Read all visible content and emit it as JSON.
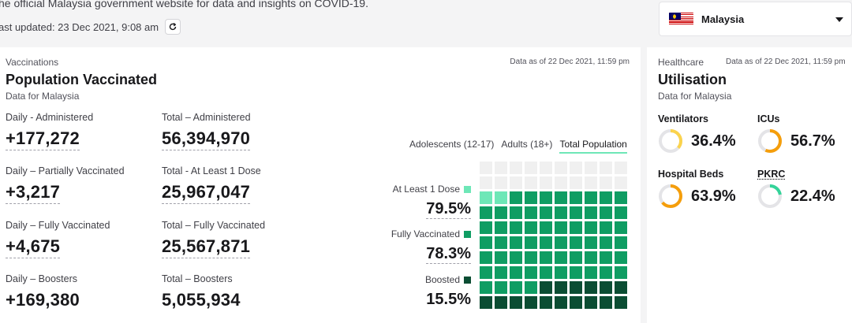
{
  "header": {
    "intro": "he official Malaysia government website for data and insights on COVID-19.",
    "last_updated": "ast updated: 23 Dec 2021, 9:08 am",
    "refresh_icon": "refresh-icon"
  },
  "country_select": {
    "value": "Malaysia",
    "flag_icon": "malaysia-flag-icon",
    "caret_icon": "chevron-down-icon"
  },
  "vaccinations": {
    "overline": "Vaccinations",
    "as_of": "Data as of 22 Dec 2021, 11:59 pm",
    "title": "Population Vaccinated",
    "subtitle": "Data for Malaysia",
    "stats": [
      {
        "label": "Daily - Administered",
        "value": "+177,272"
      },
      {
        "label": "Total – Administered",
        "value": "56,394,970"
      },
      {
        "label": "Daily – Partially Vaccinated",
        "value": "+3,217"
      },
      {
        "label": "Total - At Least 1 Dose",
        "value": "25,967,047"
      },
      {
        "label": "Daily – Fully Vaccinated",
        "value": "+4,675"
      },
      {
        "label": "Total – Fully Vaccinated",
        "value": "25,567,871"
      },
      {
        "label": "Daily – Boosters",
        "value": "+169,380"
      },
      {
        "label": "Total – Boosters",
        "value": "5,055,934"
      }
    ],
    "tabs": [
      "Adolescents (12-17)",
      "Adults (18+)",
      "Total Population"
    ],
    "active_tab": "Total Population",
    "breakdown": [
      {
        "label": "At Least 1 Dose",
        "value": "79.5%",
        "fraction": 0.795,
        "color": "#6ee7b7"
      },
      {
        "label": "Fully Vaccinated",
        "value": "78.3%",
        "fraction": 0.783,
        "color": "#0f9d63"
      },
      {
        "label": "Boosted",
        "value": "15.5%",
        "fraction": 0.155,
        "color": "#0b4d33"
      }
    ],
    "waffle_empty_color": "#f0f0f0"
  },
  "healthcare": {
    "overline": "Healthcare",
    "as_of": "Data as of 22 Dec 2021, 11:59 pm",
    "title": "Utilisation",
    "subtitle": "Data for Malaysia",
    "items": [
      {
        "label": "Ventilators",
        "value": "36.4%",
        "fraction": 0.364,
        "color": "#fbd34d"
      },
      {
        "label": "ICUs",
        "value": "56.7%",
        "fraction": 0.567,
        "color": "#f59e0b"
      },
      {
        "label": "Hospital Beds",
        "value": "63.9%",
        "fraction": 0.639,
        "color": "#f59e0b"
      },
      {
        "label": "PKRC",
        "value": "22.4%",
        "fraction": 0.224,
        "color": "#34d399"
      }
    ],
    "track_color": "#e4e4e7"
  }
}
